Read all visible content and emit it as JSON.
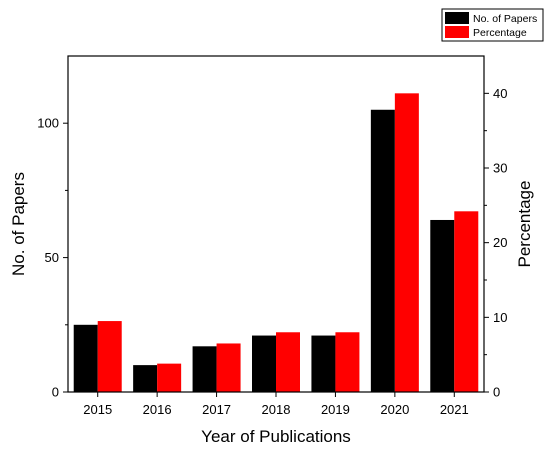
{
  "chart_data": {
    "type": "bar",
    "categories": [
      "2015",
      "2016",
      "2017",
      "2018",
      "2019",
      "2020",
      "2021"
    ],
    "series": [
      {
        "name": "No. of Papers",
        "axis": "left",
        "color": "#000000",
        "values": [
          25,
          10,
          17,
          21,
          21,
          105,
          64
        ]
      },
      {
        "name": "Percentage",
        "axis": "right",
        "color": "#ff0000",
        "values": [
          9.5,
          3.8,
          6.5,
          8.0,
          8.0,
          40.0,
          24.2
        ]
      }
    ],
    "xlabel": "Year of Publications",
    "ylabel_left": "No. of Papers",
    "ylabel_right": "Percentage",
    "ylim_left": [
      0,
      125
    ],
    "ylim_right": [
      0,
      45
    ],
    "yticks_left": [
      "0",
      "50",
      "100"
    ],
    "yticks_right": [
      "0",
      "10",
      "20",
      "30",
      "40"
    ],
    "legend_position": "top-right",
    "grid": false
  }
}
